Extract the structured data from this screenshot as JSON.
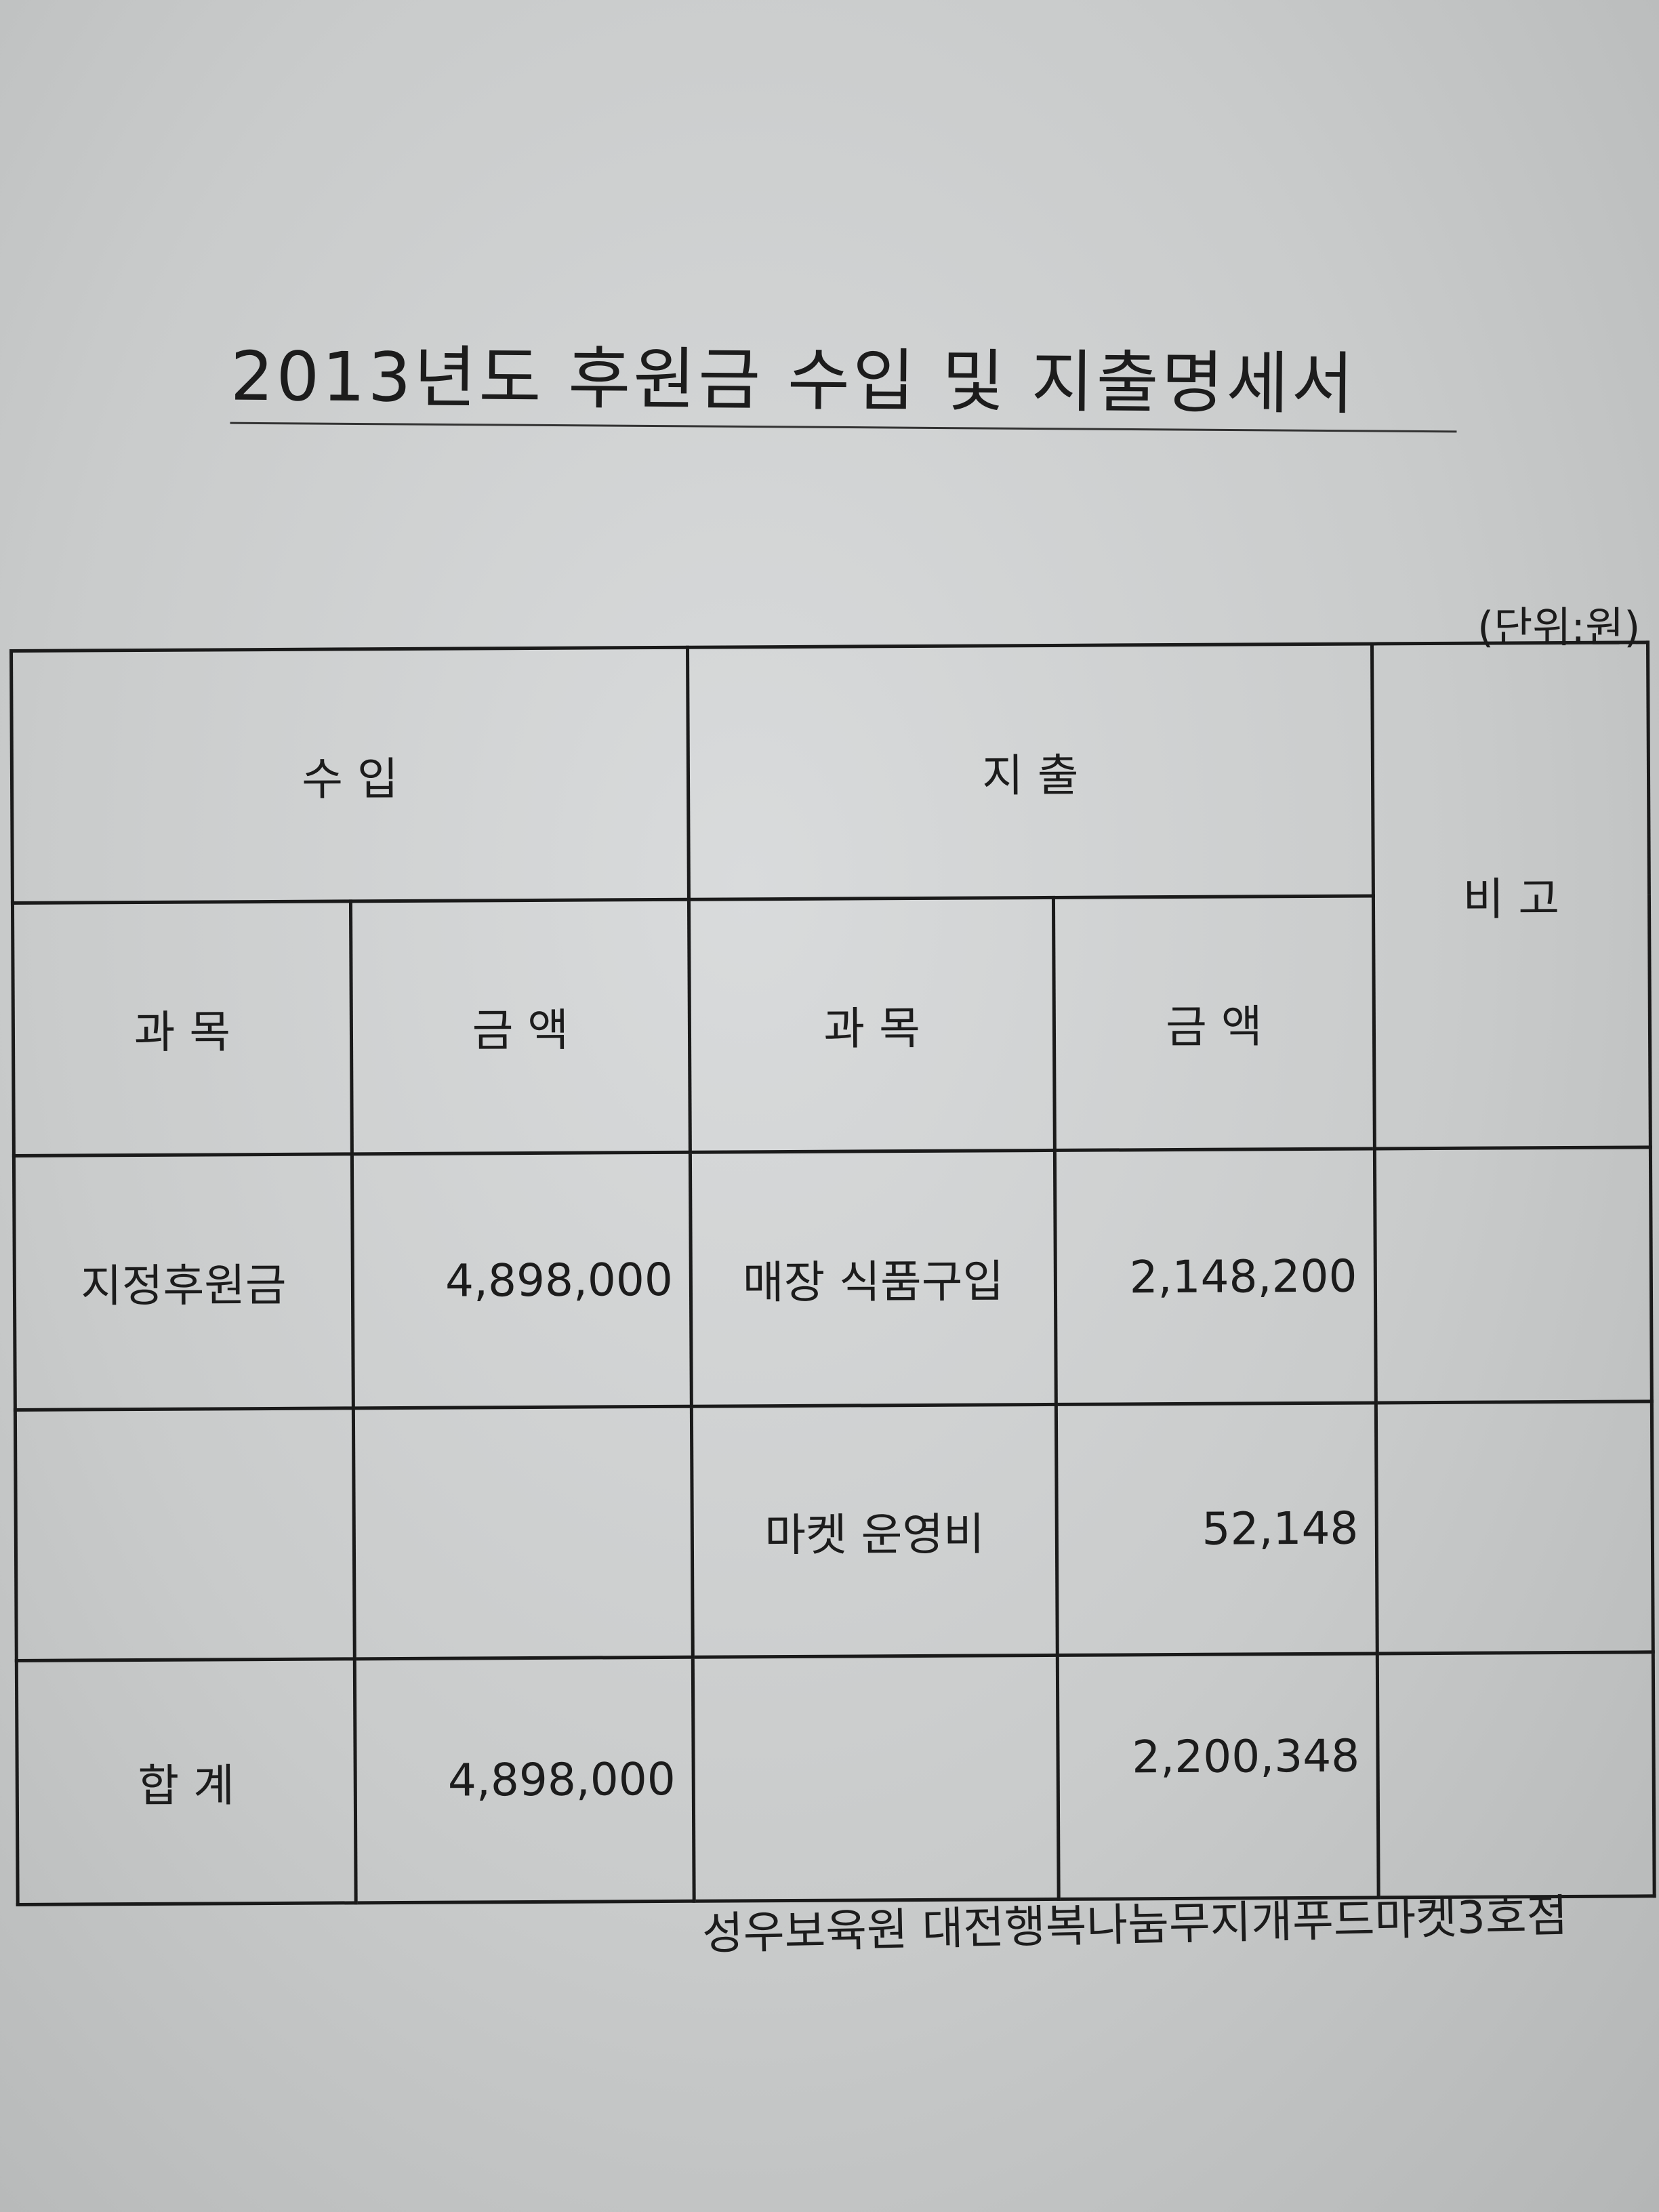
{
  "title": "2013년도 후원금 수입 및 지출명세서",
  "unit": "(단위:원)",
  "table": {
    "income_header": "수        입",
    "expense_header": "지        출",
    "remarks_header": "비    고",
    "income_item_header": "과 목",
    "income_amount_header": "금 액",
    "expense_item_header": "과 목",
    "expense_amount_header": "금 액",
    "rows": [
      {
        "income_item": "지정후원금",
        "income_amount": "4,898,000",
        "expense_item": "매장 식품구입",
        "expense_amount": "2,148,200",
        "remarks": ""
      },
      {
        "income_item": "",
        "income_amount": "",
        "expense_item": "마켓 운영비",
        "expense_amount": "52,148",
        "remarks": ""
      }
    ],
    "total": {
      "label": "합      계",
      "income_amount": "4,898,000",
      "expense_item": "",
      "expense_amount": "2,200,348",
      "remarks": ""
    }
  },
  "footer": "성우보육원  대전행복나눔무지개푸드마켓3호점"
}
